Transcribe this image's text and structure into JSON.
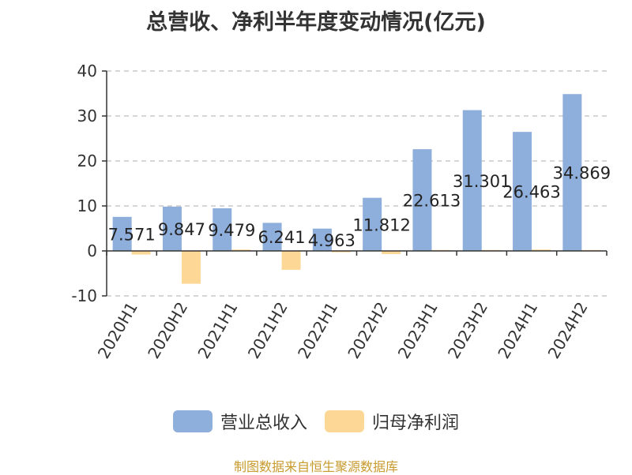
{
  "chart_data": {
    "type": "bar",
    "title": "总营收、净利半年度变动情况(亿元)",
    "categories": [
      "2020H1",
      "2020H2",
      "2021H1",
      "2021H2",
      "2022H1",
      "2022H2",
      "2023H1",
      "2023H2",
      "2024H1",
      "2024H2"
    ],
    "series": [
      {
        "name": "营业总收入",
        "color": "#8eaedb",
        "values": [
          7.571,
          9.847,
          9.479,
          6.241,
          4.963,
          11.812,
          22.613,
          31.301,
          26.463,
          34.869
        ],
        "labels": [
          "7.571",
          "9.847",
          "9.479",
          "6.241",
          "4.963",
          "11.812",
          "22.613",
          "31.301",
          "26.463",
          "34.869"
        ]
      },
      {
        "name": "归母净利润",
        "color": "#fdd796",
        "values": [
          -0.8,
          -7.3,
          0.3,
          -4.2,
          -0.3,
          -0.7,
          0.2,
          0.2,
          0.3,
          0.2
        ]
      }
    ],
    "ylim": [
      -10,
      40
    ],
    "yticks": [
      -10,
      0,
      10,
      20,
      30,
      40
    ],
    "grid": true,
    "legend": "bottom"
  },
  "source": "制图数据来自恒生聚源数据库"
}
